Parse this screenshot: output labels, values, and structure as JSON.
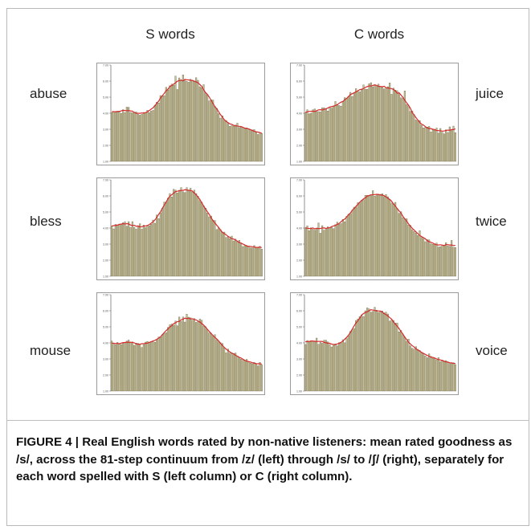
{
  "column_headers": [
    "S words",
    "C words"
  ],
  "caption": "FIGURE 4 | Real English words rated by non-native listeners: mean rated goodness as /s/, across the 81-step continuum from /z/ (left) through /s/ to /ʃ/ (right), separately for each word spelled with S (left column) or C (right column).",
  "colors": {
    "bar_fill": "#c8bf95",
    "bar_stroke": "#5e5838",
    "fit_line": "#d42b2b",
    "axis": "#777777"
  },
  "chart_data": [
    {
      "type": "bar",
      "word": "abuse",
      "column": "S words",
      "ylim": [
        1,
        7
      ],
      "y_ticks": [
        "7.00",
        "6.00",
        "5.00",
        "4.00",
        "3.00",
        "2.00",
        "1.00"
      ],
      "values": [
        4.04,
        4.09,
        4.12,
        4.13,
        4.14,
        3.99,
        4.22,
        4.04,
        4.38,
        4.37,
        4.05,
        4.03,
        4.06,
        4.08,
        3.93,
        3.88,
        3.93,
        4.05,
        4.04,
        4.19,
        4.04,
        4.14,
        4.18,
        4.5,
        4.69,
        4.64,
        5.1,
        5.09,
        5.09,
        5.61,
        5.44,
        5.71,
        5.81,
        5.74,
        6.31,
        5.48,
        6.2,
        6.02,
        6.39,
        6.1,
        5.99,
        5.93,
        6.11,
        6.05,
        5.96,
        6.21,
        6.05,
        5.65,
        5.59,
        5.78,
        5.26,
        5.14,
        4.77,
        4.84,
        4.82,
        4.43,
        4.3,
        3.98,
        3.7,
        3.84,
        3.57,
        3.55,
        3.36,
        3.19,
        3.23,
        3.2,
        3.26,
        3.38,
        3.11,
        3.14,
        3.11,
        3.09,
        3.09,
        2.96,
        2.98,
        2.96,
        2.98,
        2.81,
        2.68,
        2.79,
        2.73
      ]
    },
    {
      "type": "bar",
      "word": "juice",
      "column": "C words",
      "ylim": [
        1,
        7
      ],
      "y_ticks": [
        "7.00",
        "6.00",
        "5.00",
        "4.00",
        "3.00",
        "2.00",
        "1.00"
      ],
      "values": [
        4.03,
        4.22,
        3.97,
        4.0,
        4.21,
        4.26,
        4.13,
        4.1,
        4.08,
        4.34,
        4.34,
        4.29,
        4.14,
        4.4,
        4.32,
        4.46,
        4.73,
        4.55,
        4.48,
        4.44,
        4.72,
        4.97,
        4.94,
        5.04,
        5.3,
        5.04,
        5.29,
        5.53,
        5.38,
        5.33,
        5.46,
        5.76,
        5.5,
        5.49,
        5.84,
        5.9,
        5.65,
        5.78,
        5.67,
        5.81,
        5.67,
        5.64,
        5.51,
        5.59,
        5.65,
        5.89,
        5.18,
        5.56,
        5.44,
        5.4,
        5.25,
        4.96,
        4.93,
        5.39,
        4.55,
        4.47,
        4.12,
        4.14,
        3.91,
        3.58,
        3.52,
        3.54,
        3.25,
        3.09,
        3.11,
        3.14,
        3.18,
        2.83,
        3.02,
        2.94,
        3.08,
        2.77,
        3.05,
        2.81,
        2.72,
        2.97,
        2.8,
        3.15,
        2.97,
        3.2,
        2.79
      ]
    },
    {
      "type": "bar",
      "word": "bless",
      "column": "S words",
      "ylim": [
        1,
        7
      ],
      "y_ticks": [
        "7.00",
        "6.00",
        "5.00",
        "4.00",
        "3.00",
        "2.00",
        "1.00"
      ],
      "values": [
        4.14,
        3.95,
        4.23,
        4.18,
        4.25,
        4.23,
        4.33,
        4.4,
        4.12,
        4.4,
        4.05,
        4.4,
        4.05,
        3.93,
        4.14,
        4.27,
        3.93,
        4.19,
        4.03,
        4.11,
        4.14,
        4.24,
        4.5,
        4.3,
        4.81,
        4.59,
        4.95,
        5.23,
        5.62,
        5.61,
        5.86,
        6.15,
        5.94,
        6.41,
        6.36,
        6.19,
        6.35,
        6.52,
        6.26,
        6.21,
        6.52,
        6.37,
        6.48,
        6.25,
        6.36,
        6.15,
        5.98,
        5.72,
        5.61,
        5.39,
        5.24,
        4.94,
        4.7,
        4.75,
        4.48,
        4.47,
        3.91,
        4.02,
        3.9,
        3.72,
        3.75,
        3.41,
        3.45,
        3.35,
        3.5,
        3.2,
        3.31,
        3.15,
        3.24,
        3.03,
        2.85,
        2.94,
        2.92,
        2.88,
        2.77,
        2.76,
        2.91,
        2.81,
        2.78,
        2.86,
        2.69
      ]
    },
    {
      "type": "bar",
      "word": "twice",
      "column": "C words",
      "ylim": [
        1,
        7
      ],
      "y_ticks": [
        "7.00",
        "6.00",
        "5.00",
        "4.00",
        "3.00",
        "2.00",
        "1.00"
      ],
      "values": [
        4.02,
        4.14,
        3.84,
        4.02,
        3.93,
        3.87,
        3.96,
        4.32,
        3.68,
        4.15,
        3.87,
        3.96,
        4.08,
        4.02,
        4.05,
        3.96,
        4.21,
        4.37,
        4.24,
        4.28,
        4.54,
        4.4,
        4.73,
        4.86,
        4.88,
        5.11,
        5.3,
        5.3,
        5.58,
        5.57,
        5.73,
        5.76,
        6.04,
        6.04,
        6.01,
        6.02,
        6.33,
        5.99,
        6.08,
        6.06,
        6.1,
        6.14,
        5.97,
        6.09,
        5.95,
        5.78,
        5.56,
        5.51,
        5.6,
        5.21,
        4.92,
        5.02,
        4.65,
        4.56,
        4.58,
        4.19,
        4.17,
        3.9,
        3.79,
        3.7,
        3.54,
        3.84,
        3.41,
        3.35,
        3.15,
        3.28,
        3.26,
        3.02,
        2.99,
        3.02,
        3.06,
        2.82,
        2.84,
        2.94,
        2.94,
        3.09,
        2.89,
        2.86,
        3.23,
        2.81,
        2.79
      ]
    },
    {
      "type": "bar",
      "word": "mouse",
      "column": "S words",
      "ylim": [
        1,
        7
      ],
      "y_ticks": [
        "7.00",
        "6.00",
        "5.00",
        "4.00",
        "3.00",
        "2.00",
        "1.00"
      ],
      "values": [
        4.11,
        3.92,
        3.89,
        4.03,
        3.92,
        3.9,
        3.99,
        4.03,
        4.11,
        4.18,
        4.04,
        4.06,
        3.85,
        3.99,
        3.97,
        3.94,
        3.71,
        3.9,
        4.05,
        4.09,
        4.01,
        4.08,
        4.06,
        4.04,
        4.19,
        4.36,
        4.34,
        4.52,
        4.58,
        4.64,
        4.97,
        5.13,
        5.18,
        5.1,
        5.36,
        5.07,
        5.61,
        5.33,
        5.61,
        5.3,
        5.79,
        5.6,
        5.56,
        5.41,
        5.51,
        5.28,
        5.36,
        5.48,
        5.41,
        5.05,
        5.0,
        4.82,
        4.63,
        4.56,
        4.42,
        4.51,
        4.2,
        4.06,
        4.01,
        3.96,
        3.69,
        3.38,
        3.61,
        3.36,
        3.31,
        3.34,
        3.37,
        3.19,
        3.06,
        2.99,
        2.91,
        2.88,
        2.98,
        2.84,
        2.74,
        2.7,
        2.79,
        2.72,
        2.57,
        2.79,
        2.63
      ]
    },
    {
      "type": "bar",
      "word": "voice",
      "column": "C words",
      "ylim": [
        1,
        7
      ],
      "y_ticks": [
        "7.00",
        "6.00",
        "5.00",
        "4.00",
        "3.00",
        "2.00",
        "1.00"
      ],
      "values": [
        3.9,
        4.15,
        4.09,
        4.14,
        4.12,
        4.12,
        4.3,
        3.91,
        4.03,
        3.98,
        4.17,
        4.16,
        4.06,
        3.9,
        3.75,
        3.85,
        3.94,
        3.82,
        4.02,
        3.98,
        4.2,
        4.01,
        4.27,
        4.45,
        4.71,
        4.82,
        4.9,
        5.4,
        5.49,
        5.64,
        5.75,
        5.64,
        6.0,
        6.18,
        6.12,
        5.91,
        5.96,
        6.22,
        6.04,
        5.9,
        5.95,
        5.99,
        5.87,
        5.91,
        5.8,
        5.36,
        5.43,
        5.4,
        5.24,
        5.23,
        4.69,
        4.78,
        4.51,
        4.36,
        4.1,
        4.24,
        3.82,
        3.67,
        3.61,
        3.76,
        3.6,
        3.53,
        3.37,
        3.34,
        3.19,
        3.08,
        3.32,
        3.16,
        3.05,
        3.04,
        2.93,
        3.08,
        2.83,
        2.94,
        2.84,
        2.9,
        2.76,
        2.71,
        2.75,
        2.76,
        2.65
      ]
    }
  ]
}
